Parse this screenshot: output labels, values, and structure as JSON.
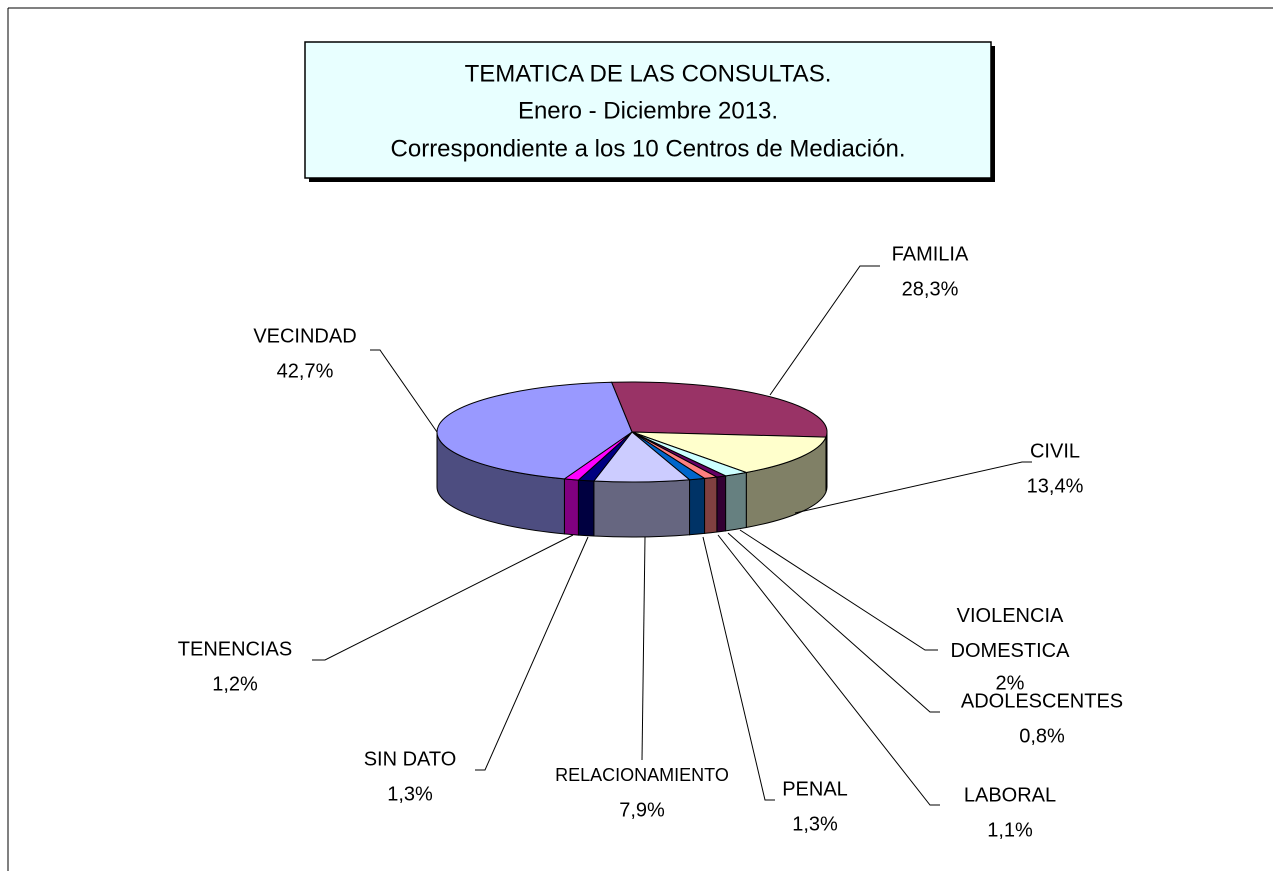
{
  "chart_data": {
    "type": "pie",
    "title": "TEMATICA DE LAS CONSULTAS.",
    "subtitle": [
      "Enero - Diciembre 2013.",
      "Correspondiente a los 10 Centros de Mediación."
    ],
    "categories": [
      "FAMILIA",
      "CIVIL",
      "VIOLENCIA DOMESTICA",
      "ADOLESCENTES",
      "LABORAL",
      "PENAL",
      "RELACIONAMIENTO",
      "SIN DATO",
      "TENENCIAS",
      "VECINDAD"
    ],
    "values": [
      28.3,
      13.4,
      2,
      0.8,
      1.1,
      1.3,
      7.9,
      1.3,
      1.2,
      42.7
    ],
    "value_labels": [
      "28,3%",
      "13,4%",
      "2%",
      "0,8%",
      "1,1%",
      "1,3%",
      "7,9%",
      "1,3%",
      "1,2%",
      "42,7%"
    ],
    "colors": [
      "#993366",
      "#ffffcc",
      "#ccffff",
      "#660066",
      "#ff8080",
      "#0066cc",
      "#ccccff",
      "#000080",
      "#ff00ff",
      "#9999ff"
    ]
  }
}
